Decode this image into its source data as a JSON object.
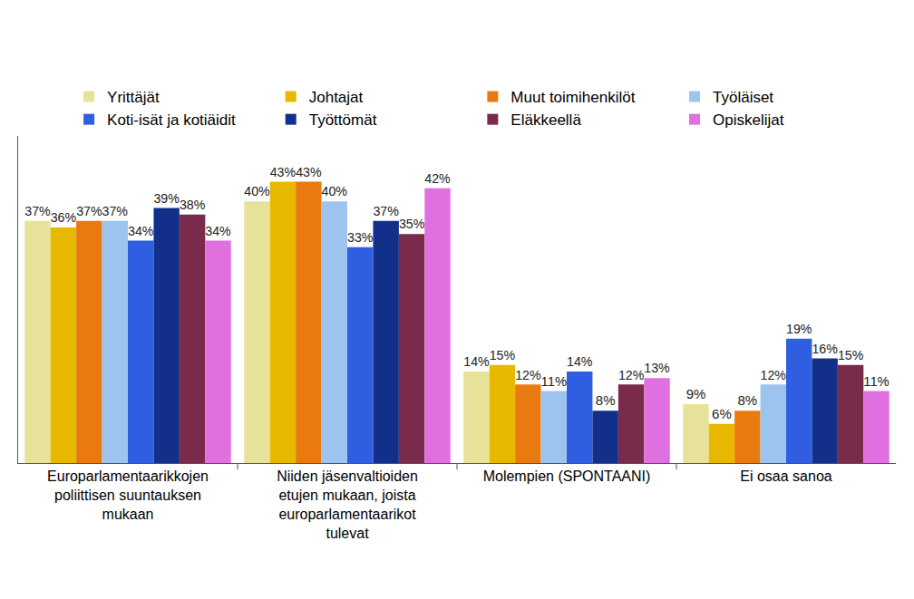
{
  "chart_data": {
    "type": "bar",
    "categories": [
      "Europarlamentaarikkojen poliittisen suuntauksen mukaan",
      "Niiden jäsenvaltioiden etujen mukaan, joista europarlamentaarikot tulevat",
      "Molempien (SPONTAANI)",
      "Ei osaa sanoa"
    ],
    "series": [
      {
        "name": "Yrittäjät",
        "color": "#e6e29a",
        "values": [
          37,
          40,
          14,
          9
        ],
        "value_labels": [
          "37%",
          "40%",
          "14%",
          "9%"
        ]
      },
      {
        "name": "Johtajat",
        "color": "#e8b800",
        "values": [
          36,
          43,
          15,
          6
        ],
        "value_labels": [
          "36%",
          "43%",
          "15%",
          "6%"
        ]
      },
      {
        "name": "Muut toimihenkilöt",
        "color": "#e87a10",
        "values": [
          37,
          43,
          12,
          8
        ],
        "value_labels": [
          "37%",
          "43%",
          "12%",
          "8%"
        ]
      },
      {
        "name": "Työläiset",
        "color": "#9cc4ee",
        "values": [
          37,
          40,
          11,
          12
        ],
        "value_labels": [
          "37%",
          "40%",
          "11%",
          "12%"
        ]
      },
      {
        "name": "Koti-isät ja kotiäidit",
        "color": "#2f5fe0",
        "values": [
          34,
          33,
          14,
          19
        ],
        "value_labels": [
          "34%",
          "33%",
          "14%",
          "19%"
        ]
      },
      {
        "name": "Työttömät",
        "color": "#12308a",
        "values": [
          39,
          37,
          8,
          16
        ],
        "value_labels": [
          "39%",
          "37%",
          "8%",
          "16%"
        ]
      },
      {
        "name": "Eläkkeellä",
        "color": "#7a2a4a",
        "values": [
          38,
          35,
          12,
          15
        ],
        "value_labels": [
          "38%",
          "35%",
          "12%",
          "15%"
        ]
      },
      {
        "name": "Opiskelijat",
        "color": "#e070e0",
        "values": [
          34,
          42,
          13,
          11
        ],
        "value_labels": [
          "34%",
          "42%",
          "13%",
          "11%"
        ]
      }
    ],
    "ylim": [
      0,
      50
    ],
    "yticks": [],
    "grid": false,
    "legend": "top",
    "data_labels": true,
    "tick_labels": "x"
  }
}
